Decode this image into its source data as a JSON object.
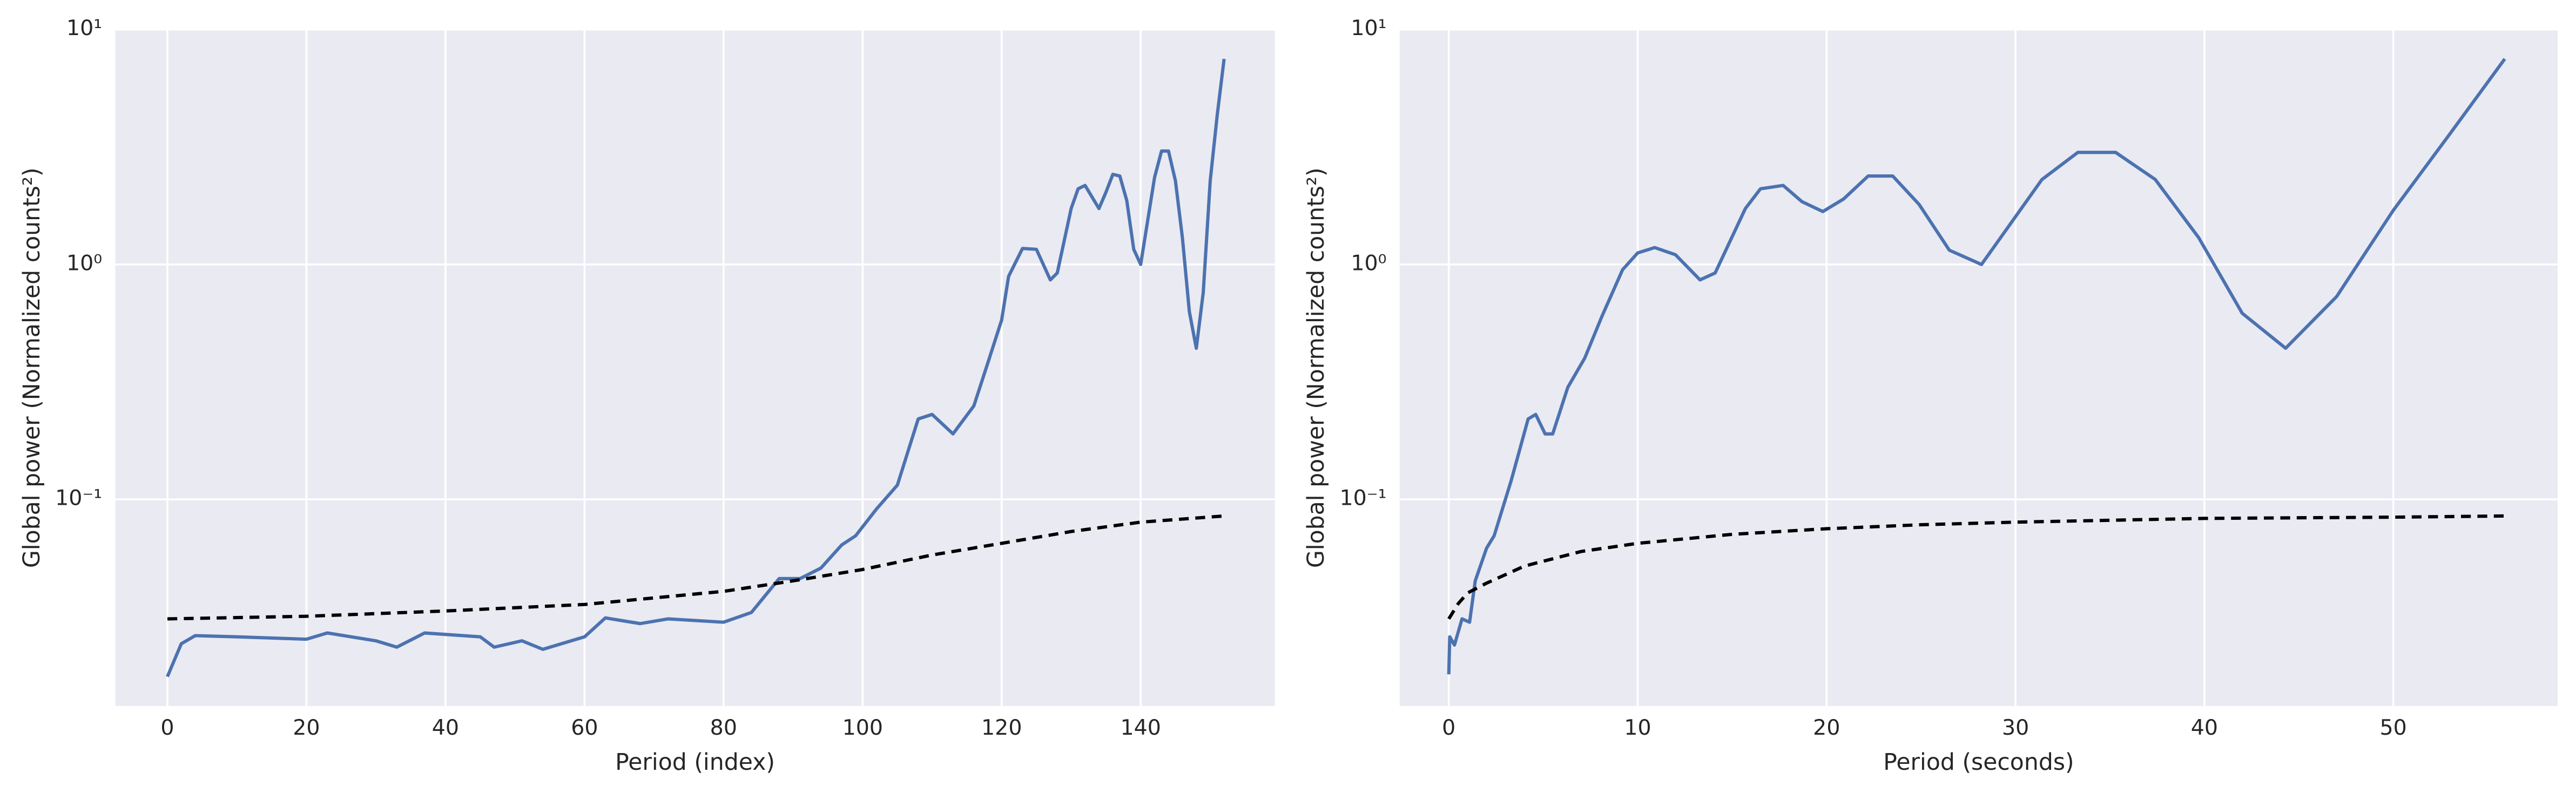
{
  "chart_data": [
    {
      "type": "line",
      "xlabel": "Period (index)",
      "ylabel": "Global power (Normalized counts²)",
      "xlim": [
        -7.5,
        159.3
      ],
      "ylim": [
        0.0132,
        10
      ],
      "log_y": true,
      "grid": true,
      "xticks": [
        0,
        20,
        40,
        60,
        80,
        100,
        120,
        140
      ],
      "yticks": [
        {
          "value": 0.1,
          "label": "10⁻¹"
        },
        {
          "value": 1,
          "label": "10⁰"
        },
        {
          "value": 10,
          "label": "10¹"
        }
      ],
      "series": [
        {
          "color": "#4c72b0",
          "dashed": false,
          "x": [
            0,
            2,
            4,
            10,
            20,
            23,
            30,
            33,
            37,
            45,
            47,
            51,
            54,
            60,
            63,
            68,
            72,
            80,
            84,
            88,
            91,
            94,
            97,
            99,
            102,
            105,
            108,
            110,
            113,
            116,
            118,
            120,
            121,
            123,
            125,
            127,
            128,
            130,
            131,
            132,
            134,
            135,
            136,
            137,
            138,
            139,
            140,
            142,
            143,
            144,
            145,
            146,
            147,
            148,
            149,
            150,
            151,
            152
          ],
          "values": [
            0.0176,
            0.0243,
            0.0263,
            0.026,
            0.0254,
            0.027,
            0.025,
            0.0235,
            0.027,
            0.026,
            0.0235,
            0.025,
            0.023,
            0.026,
            0.0313,
            0.0296,
            0.031,
            0.03,
            0.033,
            0.046,
            0.046,
            0.051,
            0.064,
            0.07,
            0.091,
            0.115,
            0.22,
            0.23,
            0.19,
            0.25,
            0.38,
            0.58,
            0.89,
            1.17,
            1.16,
            0.86,
            0.92,
            1.73,
            2.1,
            2.17,
            1.73,
            2.03,
            2.42,
            2.38,
            1.87,
            1.16,
            1.0,
            2.35,
            3.04,
            3.04,
            2.27,
            1.3,
            0.63,
            0.44,
            0.76,
            2.27,
            4.3,
            7.5
          ]
        },
        {
          "color": "#000000",
          "dashed": true,
          "x": [
            0,
            20,
            40,
            60,
            80,
            90,
            100,
            110,
            120,
            130,
            140,
            152
          ],
          "values": [
            0.031,
            0.0318,
            0.0335,
            0.0357,
            0.0406,
            0.045,
            0.0503,
            0.058,
            0.065,
            0.073,
            0.08,
            0.085
          ]
        }
      ]
    },
    {
      "type": "line",
      "xlabel": "Period (seconds)",
      "ylabel": "Global power (Normalized counts²)",
      "xlim": [
        -2.6,
        58.7
      ],
      "ylim": [
        0.0132,
        10
      ],
      "log_y": true,
      "grid": true,
      "xticks": [
        0,
        10,
        20,
        30,
        40,
        50
      ],
      "yticks": [
        {
          "value": 0.1,
          "label": "10⁻¹"
        },
        {
          "value": 1,
          "label": "10⁰"
        },
        {
          "value": 10,
          "label": "10¹"
        }
      ],
      "series": [
        {
          "color": "#4c72b0",
          "dashed": false,
          "x": [
            0,
            0.05,
            0.3,
            0.7,
            1.1,
            1.4,
            2.0,
            2.4,
            3.3,
            4.2,
            4.6,
            5.1,
            5.5,
            6.3,
            7.2,
            8.1,
            9.2,
            10,
            10.9,
            12,
            13.3,
            14.1,
            15.7,
            16.5,
            17.7,
            18.7,
            19.8,
            20.9,
            22.2,
            23.5,
            24.9,
            26.5,
            28.2,
            31.4,
            33.3,
            35.3,
            37.4,
            39.7,
            42,
            44.3,
            47,
            50,
            53,
            55.9
          ],
          "values": [
            0.018,
            0.026,
            0.024,
            0.031,
            0.03,
            0.045,
            0.062,
            0.07,
            0.12,
            0.22,
            0.23,
            0.19,
            0.19,
            0.3,
            0.4,
            0.6,
            0.95,
            1.12,
            1.18,
            1.1,
            0.86,
            0.92,
            1.73,
            2.1,
            2.17,
            1.85,
            1.68,
            1.9,
            2.38,
            2.38,
            1.8,
            1.15,
            1.0,
            2.3,
            3.0,
            3.0,
            2.3,
            1.3,
            0.62,
            0.44,
            0.73,
            1.7,
            3.6,
            7.5
          ]
        },
        {
          "color": "#000000",
          "dashed": true,
          "x": [
            0,
            0.5,
            1,
            2,
            4,
            7,
            10,
            15,
            20,
            25,
            30,
            40,
            50,
            55.9
          ],
          "values": [
            0.031,
            0.036,
            0.04,
            0.044,
            0.052,
            0.06,
            0.065,
            0.071,
            0.075,
            0.078,
            0.08,
            0.083,
            0.084,
            0.085
          ]
        }
      ]
    }
  ]
}
